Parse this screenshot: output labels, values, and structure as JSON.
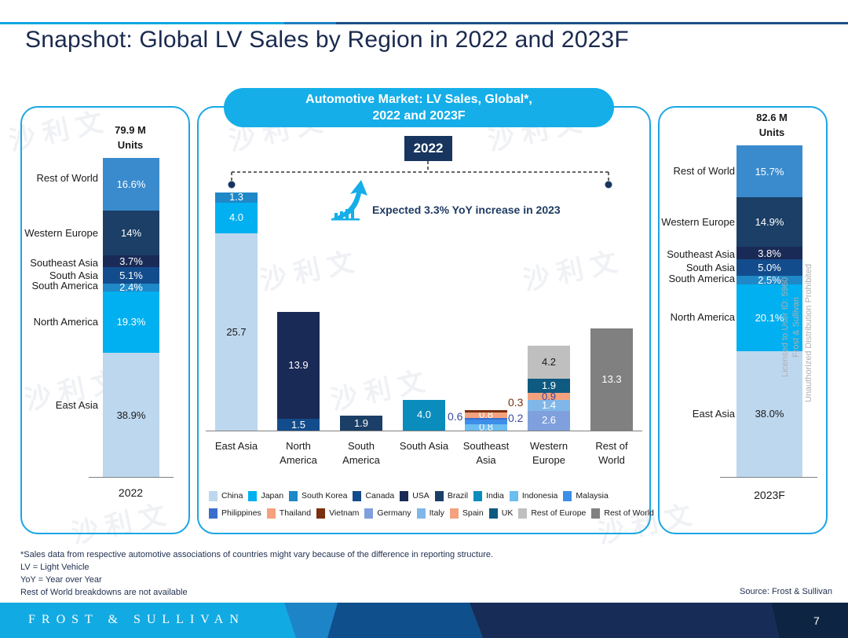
{
  "page": {
    "title": "Snapshot: Global LV Sales by Region in 2022 and 2023F",
    "page_number": "7",
    "brand": "FROST & SULLIVAN",
    "source": "Source: Frost & Sullivan",
    "footnotes": [
      "*Sales data from respective automotive associations of countries might vary because of the difference in reporting structure.",
      "LV = Light Vehicle",
      "YoY = Year over Year",
      "Rest of World breakdowns are not available"
    ],
    "watermark": {
      "line1": "Licensed to User ID: 5960",
      "line2": "Frost & Sullivan",
      "line3": "Unauthorized Distribution Prohibited",
      "cn": "沙 利 文"
    }
  },
  "colors": {
    "accent": "#15aee8",
    "title": "#1a2a4f",
    "navy": "#17355f"
  },
  "chart_data": [
    {
      "type": "bar",
      "subtype": "stacked-100-percent",
      "title": "2022",
      "total_label_line1": "79.9 M",
      "total_label_line2": "Units",
      "categories": [
        "2022"
      ],
      "segments": [
        {
          "name": "East Asia",
          "value": 38.9,
          "label": "38.9%",
          "color": "#bdd7ee",
          "text_color": "#1a1a1a"
        },
        {
          "name": "North America",
          "value": 19.3,
          "label": "19.3%",
          "color": "#00b0f0",
          "text_color": "#ffffff"
        },
        {
          "name": "South America",
          "value": 2.4,
          "label": "2.4%",
          "color": "#1e88c8",
          "text_color": "#ffffff"
        },
        {
          "name": "South Asia",
          "value": 5.1,
          "label": "5.1%",
          "color": "#134c8c",
          "text_color": "#ffffff"
        },
        {
          "name": "Southeast Asia",
          "value": 3.7,
          "label": "3.7%",
          "color": "#1a2a56",
          "text_color": "#ffffff"
        },
        {
          "name": "Western Europe",
          "value": 14.0,
          "label": "14%",
          "color": "#1b3f66",
          "text_color": "#ffffff"
        },
        {
          "name": "Rest of World",
          "value": 16.6,
          "label": "16.6%",
          "color": "#3a8bcd",
          "text_color": "#ffffff"
        }
      ],
      "unit": "%"
    },
    {
      "type": "bar",
      "subtype": "stacked",
      "title": "Automotive Market: LV Sales, Global*, 2022 and 2023F",
      "title_line1": "Automotive Market: LV Sales, Global*,",
      "title_line2": "2022 and 2023F",
      "year_badge": "2022",
      "annotation": "Expected 3.3% YoY increase in 2023",
      "unit": "Million Units",
      "categories": [
        "East Asia",
        "North America",
        "South America",
        "South Asia",
        "Southeast Asia",
        "Western Europe",
        "Rest of World"
      ],
      "category_lines": [
        [
          "East Asia"
        ],
        [
          "North",
          "America"
        ],
        [
          "South",
          "America"
        ],
        [
          "South Asia"
        ],
        [
          "Southeast",
          "Asia"
        ],
        [
          "Western",
          "Europe"
        ],
        [
          "Rest of",
          "World"
        ]
      ],
      "stacks": [
        [
          {
            "name": "China",
            "value": 25.7,
            "label": "25.7"
          },
          {
            "name": "Japan",
            "value": 4.0,
            "label": "4.0"
          },
          {
            "name": "South Korea",
            "value": 1.3,
            "label": "1.3"
          }
        ],
        [
          {
            "name": "Canada",
            "value": 1.5,
            "label": "1.5"
          },
          {
            "name": "USA",
            "value": 13.9,
            "label": "13.9"
          }
        ],
        [
          {
            "name": "Brazil",
            "value": 1.9,
            "label": "1.9"
          }
        ],
        [
          {
            "name": "India",
            "value": 4.0,
            "label": "4.0"
          }
        ],
        [
          {
            "name": "Indonesia",
            "value": 0.8,
            "label": "0.8"
          },
          {
            "name": "Malaysia",
            "value": 0.6,
            "label": "0.6",
            "label_outside": "left"
          },
          {
            "name": "Philippines",
            "value": 0.2,
            "label": "0.2",
            "label_outside": "right"
          },
          {
            "name": "Thailand",
            "value": 0.8,
            "label": "0.8"
          },
          {
            "name": "Vietnam",
            "value": 0.3,
            "label": "0.3",
            "label_outside": "right-top"
          }
        ],
        [
          {
            "name": "Germany",
            "value": 2.6,
            "label": "2.6"
          },
          {
            "name": "Italy",
            "value": 1.4,
            "label": "1.4"
          },
          {
            "name": "Spain",
            "value": 0.9,
            "label": "0.9"
          },
          {
            "name": "UK",
            "value": 1.9,
            "label": "1.9"
          },
          {
            "name": "Rest of Europe",
            "value": 4.2,
            "label": "4.2"
          }
        ],
        [
          {
            "name": "Rest of World",
            "value": 13.3,
            "label": "13.3"
          }
        ]
      ],
      "ylim": [
        0,
        31
      ],
      "legend": [
        {
          "name": "China",
          "color": "#bdd7ee"
        },
        {
          "name": "Japan",
          "color": "#00b0f0"
        },
        {
          "name": "South Korea",
          "color": "#1e88c8"
        },
        {
          "name": "Canada",
          "color": "#134c8c"
        },
        {
          "name": "USA",
          "color": "#1a2a56"
        },
        {
          "name": "Brazil",
          "color": "#1b3f66"
        },
        {
          "name": "India",
          "color": "#0a8cbc"
        },
        {
          "name": "Indonesia",
          "color": "#6cbdf0"
        },
        {
          "name": "Malaysia",
          "color": "#3d8ee8"
        },
        {
          "name": "Philippines",
          "color": "#3a6ecc"
        },
        {
          "name": "Thailand",
          "color": "#f4a27e"
        },
        {
          "name": "Vietnam",
          "color": "#7a2f0e"
        },
        {
          "name": "Germany",
          "color": "#7fa0dc"
        },
        {
          "name": "Italy",
          "color": "#80b7e8"
        },
        {
          "name": "Spain",
          "color": "#f4a27e"
        },
        {
          "name": "UK",
          "color": "#0f5a80"
        },
        {
          "name": "Rest of Europe",
          "color": "#bfbfbf"
        },
        {
          "name": "Rest of World",
          "color": "#808080"
        }
      ],
      "legend_placement": "bottom",
      "grid": false
    },
    {
      "type": "bar",
      "subtype": "stacked-100-percent",
      "title": "2023F",
      "total_label_line1": "82.6 M",
      "total_label_line2": "Units",
      "categories": [
        "2023F"
      ],
      "segments": [
        {
          "name": "East Asia",
          "value": 38.0,
          "label": "38.0%",
          "color": "#bdd7ee",
          "text_color": "#1a1a1a"
        },
        {
          "name": "North America",
          "value": 20.1,
          "label": "20.1%",
          "color": "#00b0f0",
          "text_color": "#ffffff"
        },
        {
          "name": "South America",
          "value": 2.5,
          "label": "2.5%",
          "color": "#1e88c8",
          "text_color": "#ffffff"
        },
        {
          "name": "South Asia",
          "value": 5.0,
          "label": "5.0%",
          "color": "#134c8c",
          "text_color": "#ffffff"
        },
        {
          "name": "Southeast Asia",
          "value": 3.8,
          "label": "3.8%",
          "color": "#1a2a56",
          "text_color": "#ffffff"
        },
        {
          "name": "Western Europe",
          "value": 14.9,
          "label": "14.9%",
          "color": "#1b3f66",
          "text_color": "#ffffff"
        },
        {
          "name": "Rest of World",
          "value": 15.7,
          "label": "15.7%",
          "color": "#3a8bcd",
          "text_color": "#ffffff"
        }
      ],
      "unit": "%"
    }
  ]
}
